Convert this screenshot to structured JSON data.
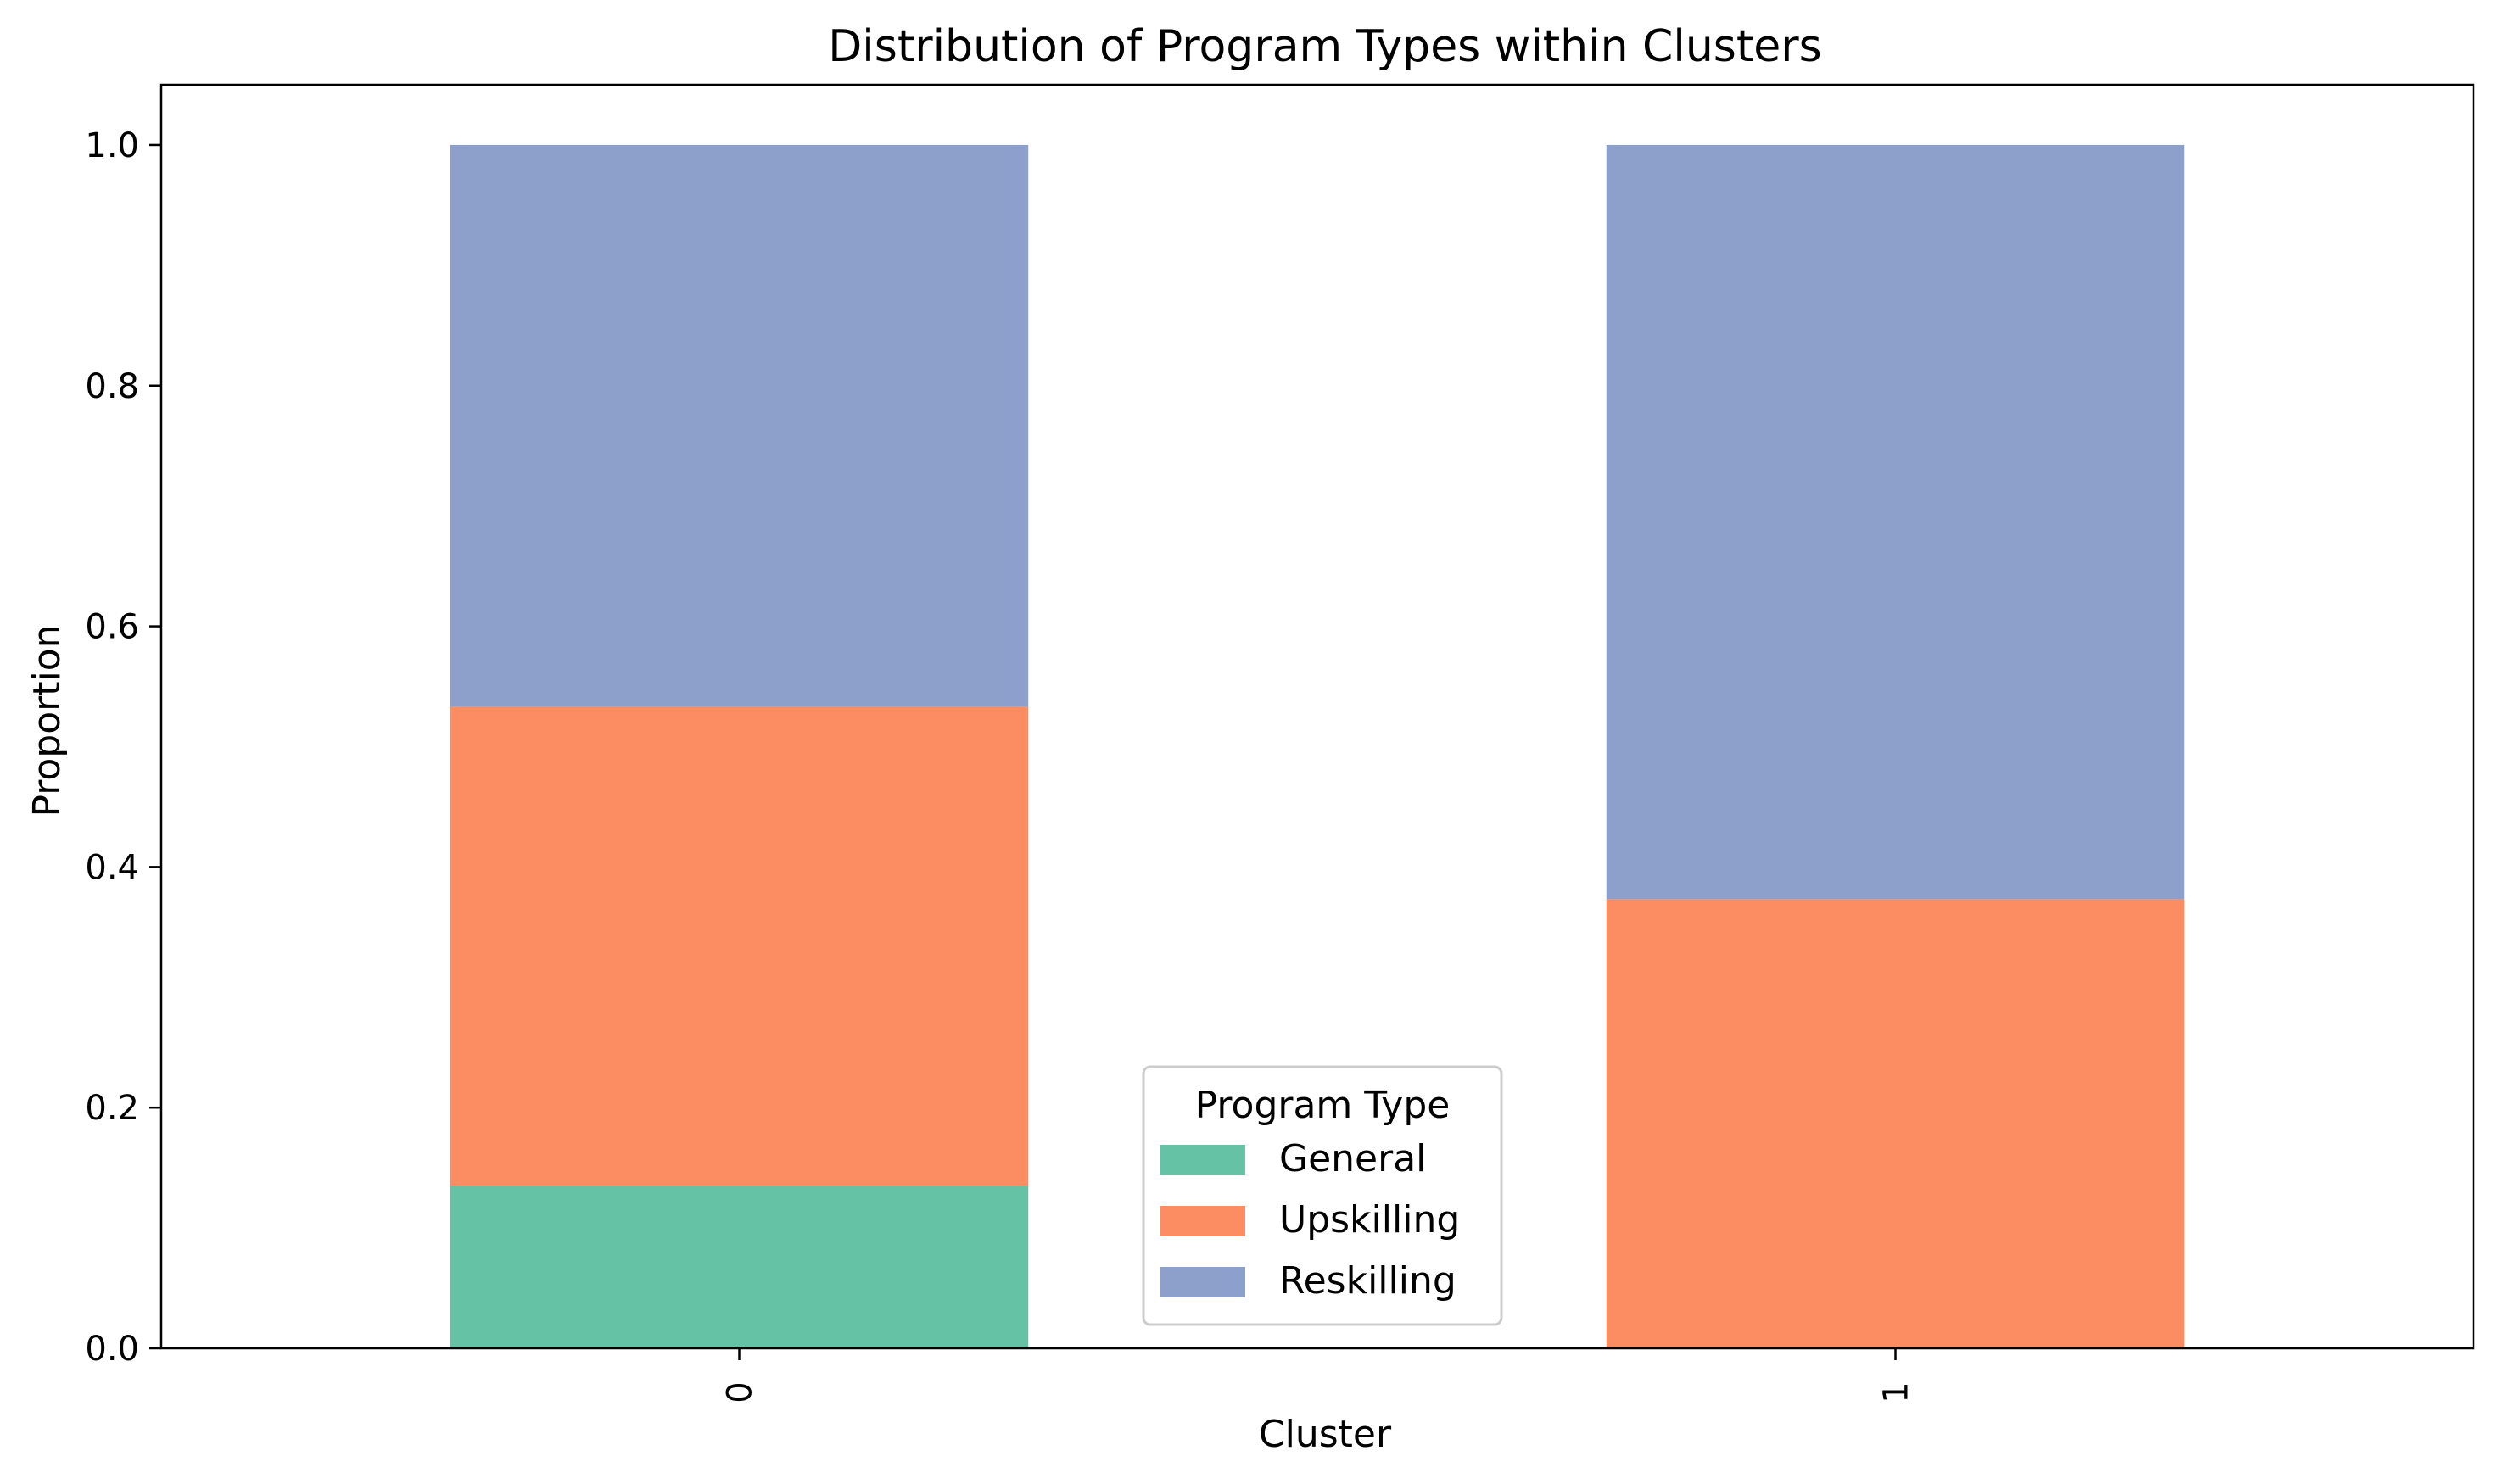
{
  "chart_data": {
    "type": "bar",
    "stacked": true,
    "title": "Distribution of Program Types within Clusters",
    "xlabel": "Cluster",
    "ylabel": "Proportion",
    "categories": [
      "0",
      "1"
    ],
    "ylim": [
      0,
      1.05
    ],
    "yticks": [
      "0.0",
      "0.2",
      "0.4",
      "0.6",
      "0.8",
      "1.0"
    ],
    "grid": false,
    "series": [
      {
        "name": "General",
        "color": "#66c2a5",
        "values": [
          0.135,
          0.0
        ]
      },
      {
        "name": "Upskilling",
        "color": "#fc8d62",
        "values": [
          0.398,
          0.373
        ]
      },
      {
        "name": "Reskilling",
        "color": "#8da0cb",
        "values": [
          0.467,
          0.627
        ]
      }
    ],
    "legend": {
      "title": "Program Type",
      "placement": "lower-center"
    }
  }
}
